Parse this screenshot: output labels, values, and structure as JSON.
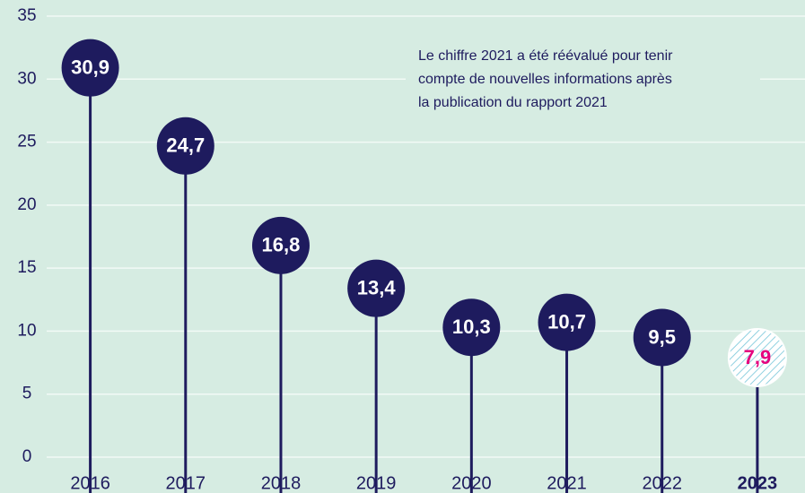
{
  "chart_data": {
    "type": "lollipop",
    "annotation": [
      "Le chiffre 2021 a été réévalué pour tenir",
      "compte de nouvelles informations après",
      "la publication du rapport 2021"
    ],
    "categories": [
      "2016",
      "2017",
      "2018",
      "2019",
      "2020",
      "2021",
      "2022",
      "2023"
    ],
    "values": [
      30.9,
      24.7,
      16.8,
      13.4,
      10.3,
      10.7,
      9.5,
      7.9
    ],
    "value_labels": [
      "30,9",
      "24,7",
      "16,8",
      "13,4",
      "10,3",
      "10,7",
      "9,5",
      "7,9"
    ],
    "color": "#1e1b5e",
    "highlight": {
      "index": 7,
      "color": "#e5007e"
    },
    "ylim": [
      0,
      35
    ],
    "yticks": [
      0,
      5,
      10,
      15,
      20,
      25,
      30,
      35
    ],
    "grid": true
  }
}
